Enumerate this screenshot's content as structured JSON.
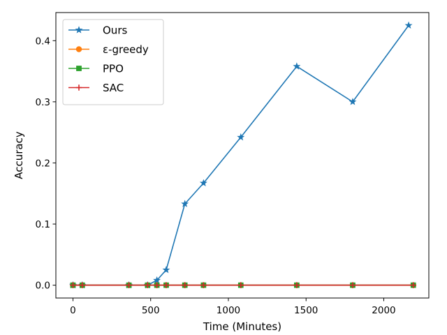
{
  "chart_data": {
    "type": "line",
    "xlabel": "Time (Minutes)",
    "ylabel": "Accuracy",
    "xlim": [
      -110,
      2290
    ],
    "ylim": [
      -0.021,
      0.446
    ],
    "xticks": [
      0,
      500,
      1000,
      1500,
      2000
    ],
    "xtick_labels": [
      "0",
      "500",
      "1000",
      "1500",
      "2000"
    ],
    "yticks": [
      0.0,
      0.1,
      0.2,
      0.3,
      0.4
    ],
    "ytick_labels": [
      "0.0",
      "0.1",
      "0.2",
      "0.3",
      "0.4"
    ],
    "grid": false,
    "legend_position": "top-left",
    "series": [
      {
        "name": "Ours",
        "color": "#1f77b4",
        "marker": "star",
        "x": [
          0,
          60,
          360,
          480,
          540,
          600,
          720,
          840,
          1080,
          1440,
          1800,
          2160
        ],
        "y": [
          0.0,
          0.0,
          0.0,
          0.0,
          0.008,
          0.025,
          0.133,
          0.167,
          0.242,
          0.358,
          0.3,
          0.425
        ]
      },
      {
        "name": "ε-greedy",
        "color": "#ff7f0e",
        "marker": "circle",
        "x": [
          0,
          60,
          360,
          480,
          540,
          600,
          720,
          840,
          1080,
          1440,
          1800,
          2190
        ],
        "y": [
          0.0,
          0.0,
          0.0,
          0.0,
          0.0,
          0.0,
          0.0,
          0.0,
          0.0,
          0.0,
          0.0,
          0.0
        ]
      },
      {
        "name": "PPO",
        "color": "#2ca02c",
        "marker": "square",
        "x": [
          0,
          60,
          360,
          480,
          540,
          600,
          720,
          840,
          1080,
          1440,
          1800,
          2190
        ],
        "y": [
          0.0,
          0.0,
          0.0,
          0.0,
          0.0,
          0.0,
          0.0,
          0.0,
          0.0,
          0.0,
          0.0,
          0.0
        ]
      },
      {
        "name": "SAC",
        "color": "#d62728",
        "marker": "plus",
        "x": [
          0,
          60,
          360,
          480,
          540,
          600,
          720,
          840,
          1080,
          1440,
          1800,
          2190
        ],
        "y": [
          0.0,
          0.0,
          0.0,
          0.0,
          0.0,
          0.0,
          0.0,
          0.0,
          0.0,
          0.0,
          0.0,
          0.0
        ]
      }
    ]
  }
}
